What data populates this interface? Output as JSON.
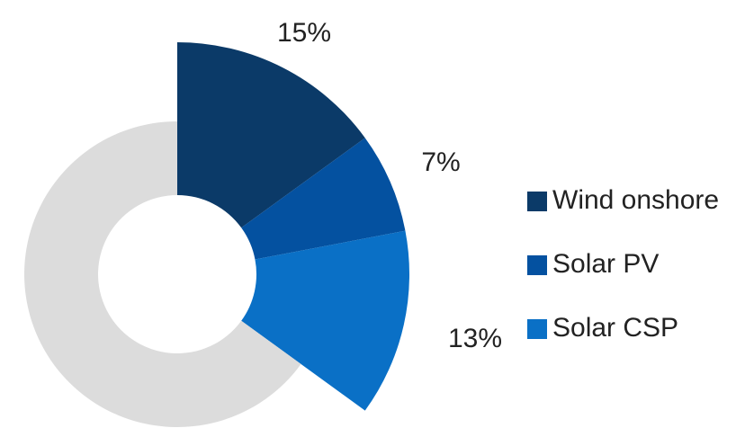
{
  "chart_data": {
    "type": "pie",
    "categories": [
      "Wind onshore",
      "Solar PV",
      "Solar CSP",
      null
    ],
    "values": [
      15,
      7,
      13,
      65
    ],
    "value_labels": [
      "15%",
      "7%",
      "13%",
      null
    ],
    "colors": [
      "#0b3a68",
      "#0451a0",
      "#0a70c6",
      "#dcdcdc"
    ],
    "legend": "right"
  }
}
